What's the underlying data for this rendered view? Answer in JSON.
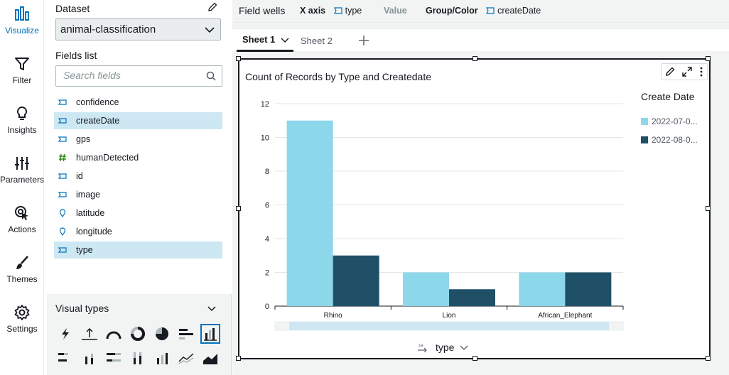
{
  "rail": {
    "items": [
      {
        "label": "Visualize",
        "icon": "visualize-icon"
      },
      {
        "label": "Filter",
        "icon": "filter-icon"
      },
      {
        "label": "Insights",
        "icon": "insights-icon"
      },
      {
        "label": "Parameters",
        "icon": "parameters-icon"
      },
      {
        "label": "Actions",
        "icon": "actions-icon"
      },
      {
        "label": "Themes",
        "icon": "themes-icon"
      },
      {
        "label": "Settings",
        "icon": "settings-icon"
      }
    ]
  },
  "panel": {
    "dataset_label": "Dataset",
    "dataset_value": "animal-classification",
    "fields_label": "Fields list",
    "search_placeholder": "Search fields",
    "fields": [
      {
        "name": "confidence",
        "kind": "dimension"
      },
      {
        "name": "createDate",
        "kind": "dimension"
      },
      {
        "name": "gps",
        "kind": "dimension"
      },
      {
        "name": "humanDetected",
        "kind": "measure"
      },
      {
        "name": "id",
        "kind": "dimension"
      },
      {
        "name": "image",
        "kind": "dimension"
      },
      {
        "name": "latitude",
        "kind": "geo"
      },
      {
        "name": "longitude",
        "kind": "geo"
      },
      {
        "name": "type",
        "kind": "dimension"
      }
    ],
    "visual_types_label": "Visual types"
  },
  "wells": {
    "title": "Field wells",
    "xaxis_label": "X axis",
    "xaxis_value": "type",
    "value_label": "Value",
    "group_label": "Group/Color",
    "group_value": "createDate"
  },
  "sheets": {
    "tabs": [
      "Sheet 1",
      "Sheet 2"
    ]
  },
  "colors": {
    "accent": "#0073bb",
    "series1": "#8dd7eb",
    "series2": "#1f5068"
  },
  "visual": {
    "axis_field": "type"
  },
  "chart_data": {
    "type": "bar",
    "title": "Count of Records by Type and Createdate",
    "categories": [
      "Rhino",
      "Lion",
      "African_Elephant"
    ],
    "series": [
      {
        "name": "2022-07-0...",
        "values": [
          11,
          2,
          2
        ]
      },
      {
        "name": "2022-08-0...",
        "values": [
          3,
          1,
          2
        ]
      }
    ],
    "ylim": [
      0,
      12
    ],
    "yticks": [
      "0",
      "2",
      "4",
      "6",
      "8",
      "10",
      "12"
    ],
    "xlabel": "type",
    "ylabel": "",
    "legend_title": "Create Date",
    "legend_position": "right",
    "grid": true
  }
}
